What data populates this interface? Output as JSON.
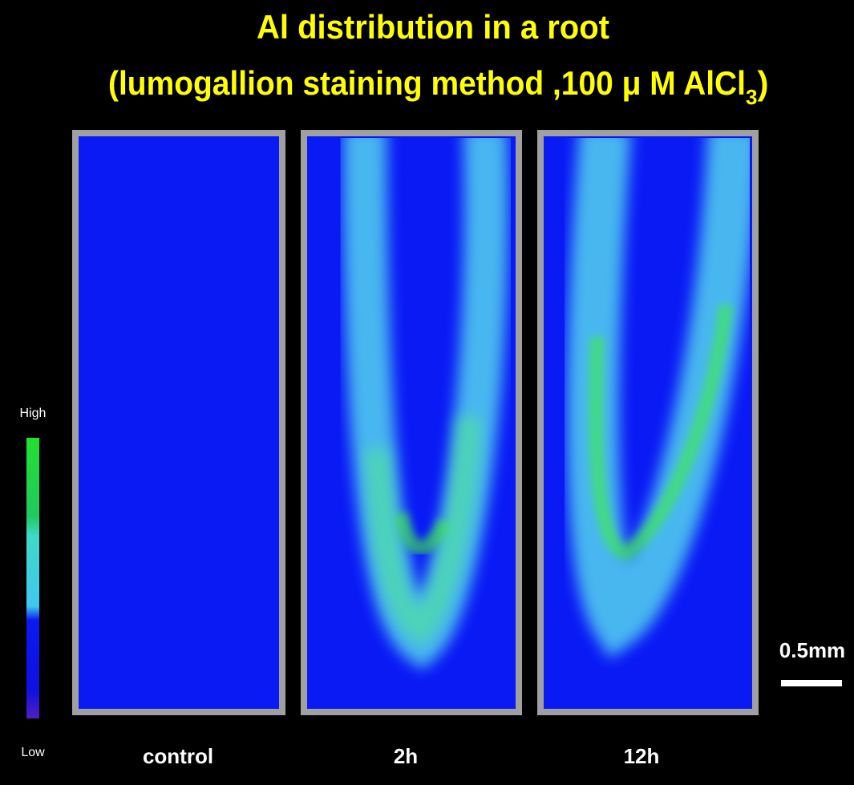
{
  "title": {
    "line1": "Al distribution in a root",
    "line2": "(lumogallion staining method ,100 μ M AlCl",
    "subscript": "3",
    "closing": ")"
  },
  "colorbar": {
    "high": "High",
    "low": "Low"
  },
  "panels": [
    {
      "label": "control"
    },
    {
      "label": "2h"
    },
    {
      "label": "12h"
    }
  ],
  "scale_bar": {
    "label": "0.5mm"
  }
}
